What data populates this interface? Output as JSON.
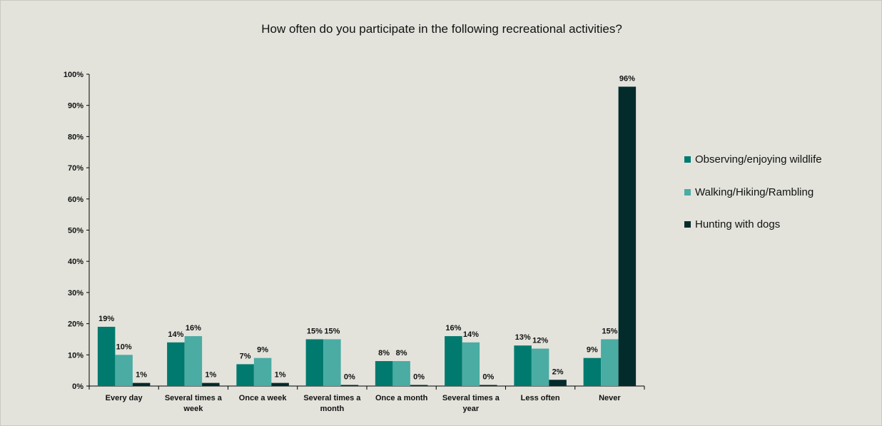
{
  "chart_data": {
    "type": "bar",
    "title": "How often do you participate in the following recreational activities?",
    "xlabel": "",
    "ylabel": "",
    "ylim": [
      0,
      100
    ],
    "yticks": [
      "0%",
      "10%",
      "20%",
      "30%",
      "40%",
      "50%",
      "60%",
      "70%",
      "80%",
      "90%",
      "100%"
    ],
    "categories": [
      [
        "Every day"
      ],
      [
        "Several times a",
        "week"
      ],
      [
        "Once a week"
      ],
      [
        "Several times a",
        "month"
      ],
      [
        "Once a month"
      ],
      [
        "Several times a",
        "year"
      ],
      [
        "Less often"
      ],
      [
        "Never"
      ]
    ],
    "series": [
      {
        "name": "Observing/enjoying wildlife",
        "color": "#007a6e",
        "values": [
          19,
          14,
          7,
          15,
          8,
          16,
          13,
          9
        ],
        "labels": [
          "19%",
          "14%",
          "7%",
          "15%",
          "8%",
          "16%",
          "13%",
          "9%"
        ]
      },
      {
        "name": "Walking/Hiking/Rambling",
        "color": "#4aaca3",
        "values": [
          10,
          16,
          9,
          15,
          8,
          14,
          12,
          15
        ],
        "labels": [
          "10%",
          "16%",
          "9%",
          "15%",
          "8%",
          "14%",
          "12%",
          "15%"
        ]
      },
      {
        "name": "Hunting with dogs",
        "color": "#042b2c",
        "values": [
          1,
          1,
          1,
          0,
          0,
          0,
          2,
          96
        ],
        "labels": [
          "1%",
          "1%",
          "1%",
          "0%",
          "0%",
          "0%",
          "2%",
          "96%"
        ]
      }
    ],
    "grid": false,
    "legend": "right"
  }
}
